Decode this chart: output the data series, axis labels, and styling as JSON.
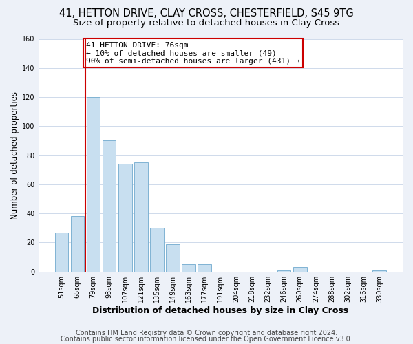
{
  "title": "41, HETTON DRIVE, CLAY CROSS, CHESTERFIELD, S45 9TG",
  "subtitle": "Size of property relative to detached houses in Clay Cross",
  "xlabel": "Distribution of detached houses by size in Clay Cross",
  "ylabel": "Number of detached properties",
  "bar_labels": [
    "51sqm",
    "65sqm",
    "79sqm",
    "93sqm",
    "107sqm",
    "121sqm",
    "135sqm",
    "149sqm",
    "163sqm",
    "177sqm",
    "191sqm",
    "204sqm",
    "218sqm",
    "232sqm",
    "246sqm",
    "260sqm",
    "274sqm",
    "288sqm",
    "302sqm",
    "316sqm",
    "330sqm"
  ],
  "bar_heights": [
    27,
    38,
    120,
    90,
    74,
    75,
    30,
    19,
    5,
    5,
    0,
    0,
    0,
    0,
    1,
    3,
    0,
    0,
    0,
    0,
    1
  ],
  "bar_color": "#c8dff0",
  "bar_edge_color": "#7fb3d3",
  "vline_color": "#cc0000",
  "annotation_text": "41 HETTON DRIVE: 76sqm\n← 10% of detached houses are smaller (49)\n90% of semi-detached houses are larger (431) →",
  "annotation_box_edge": "#cc0000",
  "ylim": [
    0,
    160
  ],
  "yticks": [
    0,
    20,
    40,
    60,
    80,
    100,
    120,
    140,
    160
  ],
  "footer_line1": "Contains HM Land Registry data © Crown copyright and database right 2024.",
  "footer_line2": "Contains public sector information licensed under the Open Government Licence v3.0.",
  "bg_color": "#edf1f8",
  "plot_bg_color": "#ffffff",
  "title_fontsize": 10.5,
  "subtitle_fontsize": 9.5,
  "xlabel_fontsize": 9,
  "ylabel_fontsize": 8.5,
  "tick_fontsize": 7,
  "annotation_fontsize": 8,
  "footer_fontsize": 7
}
